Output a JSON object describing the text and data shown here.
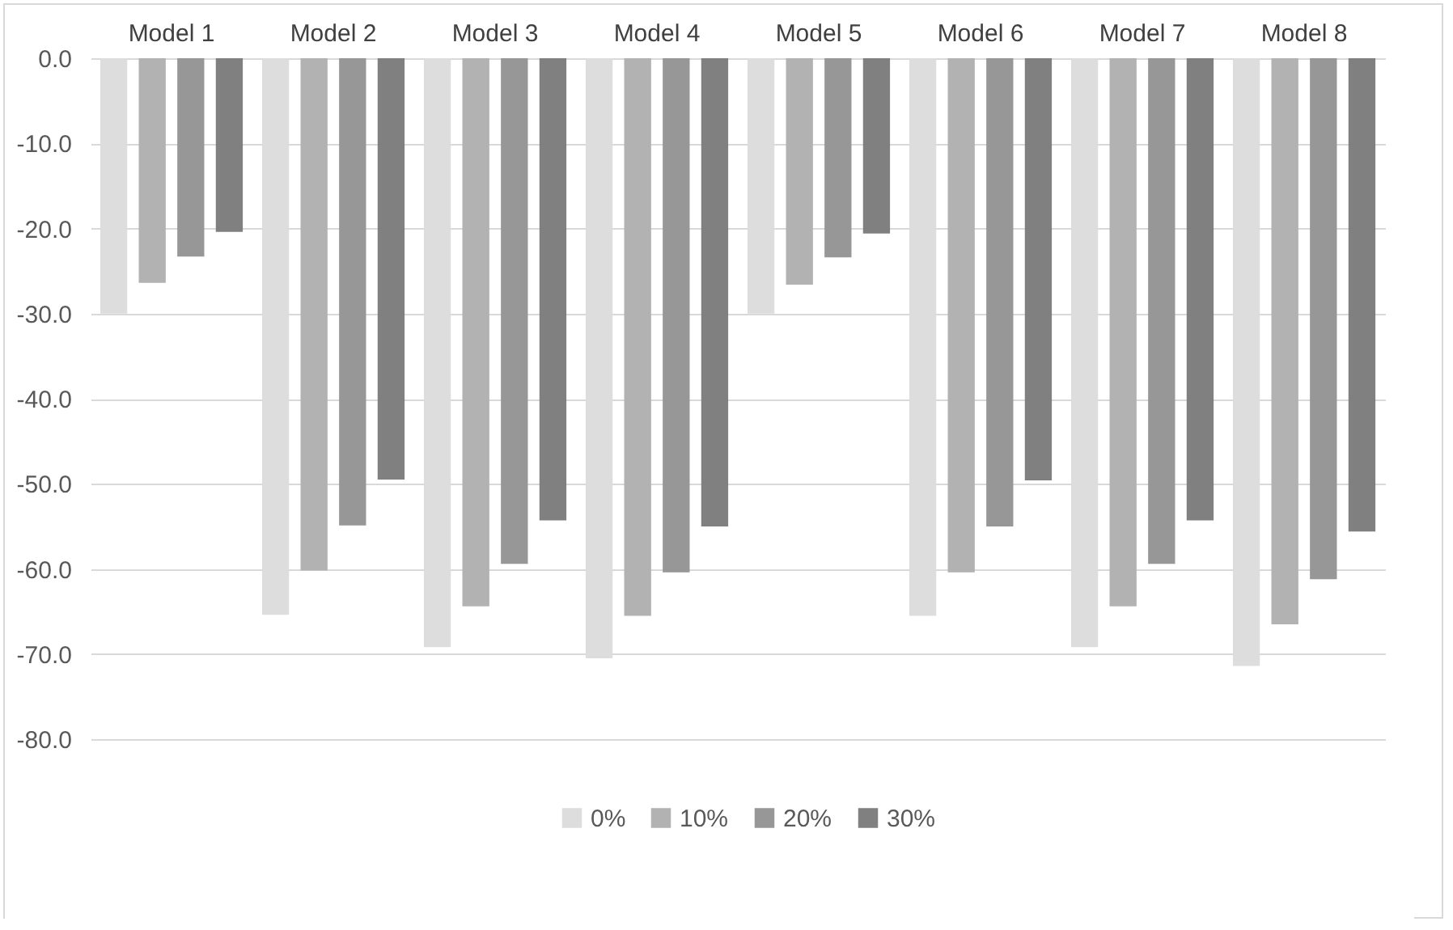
{
  "chart_data": {
    "type": "bar",
    "categories": [
      "Model 1",
      "Model 2",
      "Model 3",
      "Model 4",
      "Model 5",
      "Model 6",
      "Model 7",
      "Model 8"
    ],
    "series": [
      {
        "name": "0%",
        "color": "#dddddd",
        "values": [
          -30.0,
          -65.4,
          -69.2,
          -70.5,
          -30.0,
          -65.5,
          -69.2,
          -71.4
        ]
      },
      {
        "name": "10%",
        "color": "#b2b2b2",
        "values": [
          -26.4,
          -60.2,
          -64.4,
          -65.5,
          -26.6,
          -60.4,
          -64.4,
          -66.5
        ]
      },
      {
        "name": "20%",
        "color": "#979797",
        "values": [
          -23.3,
          -54.9,
          -59.4,
          -60.4,
          -23.4,
          -55.0,
          -59.4,
          -61.2
        ]
      },
      {
        "name": "30%",
        "color": "#808080",
        "values": [
          -20.4,
          -49.5,
          -54.3,
          -55.0,
          -20.6,
          -49.6,
          -54.3,
          -55.6
        ]
      }
    ],
    "ylim": [
      -80,
      0
    ],
    "yticks": [
      {
        "value": 0,
        "label": "0.0"
      },
      {
        "value": -10,
        "label": "-10.0"
      },
      {
        "value": -20,
        "label": "-20.0"
      },
      {
        "value": -30,
        "label": "-30.0"
      },
      {
        "value": -40,
        "label": "-40.0"
      },
      {
        "value": -50,
        "label": "-50.0"
      },
      {
        "value": -60,
        "label": "-60.0"
      },
      {
        "value": -70,
        "label": "-70.0"
      },
      {
        "value": -80,
        "label": "-80.0"
      }
    ],
    "grid": "y",
    "legend": "bottom"
  }
}
